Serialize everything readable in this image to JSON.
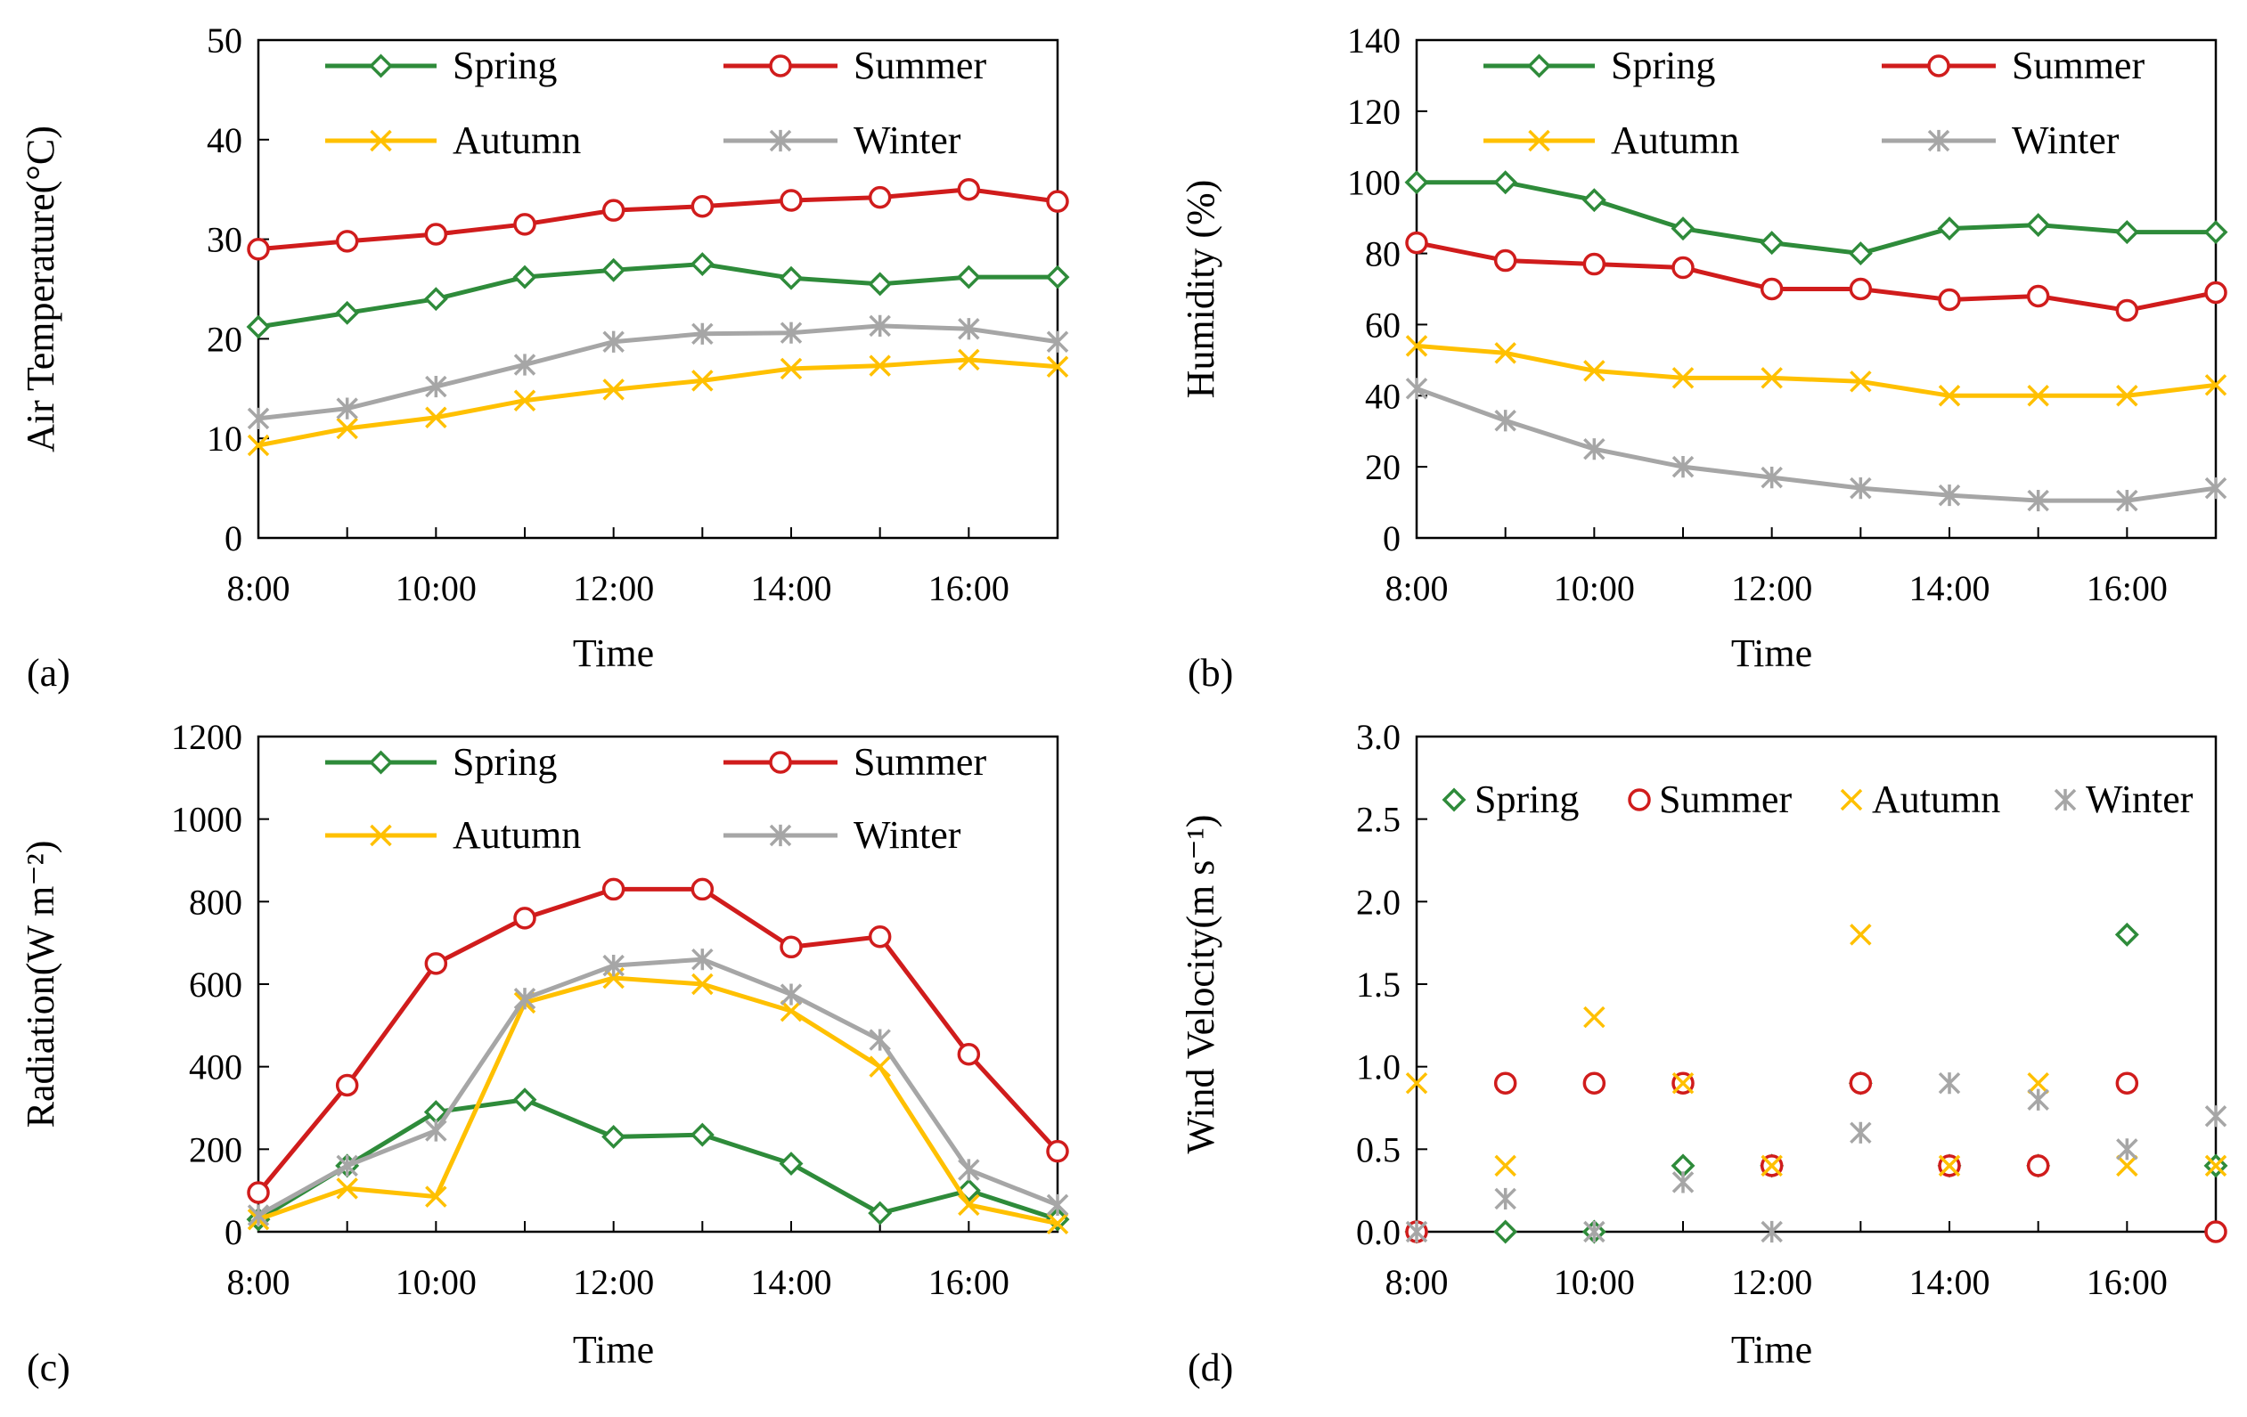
{
  "colors": {
    "spring": "#2e8b3a",
    "summer": "#d01c1c",
    "autumn": "#ffc000",
    "winter": "#a6a6a6",
    "axis": "#000000"
  },
  "chart_data": [
    {
      "panel_label": "(a)",
      "type": "line",
      "xlabel": "Time",
      "ylabel": "Air Temperature(°C)",
      "x": [
        8,
        9,
        10,
        11,
        12,
        13,
        14,
        15,
        16,
        17
      ],
      "x_tick_labels": [
        "8:00",
        "10:00",
        "12:00",
        "14:00",
        "16:00"
      ],
      "xlim": [
        8,
        17
      ],
      "ylim": [
        0,
        50
      ],
      "y_ticks": [
        0,
        10,
        20,
        30,
        40,
        50
      ],
      "y_tick_labels": [
        "0",
        "10",
        "20",
        "30",
        "40",
        "50"
      ],
      "legend_position": "top",
      "series": [
        {
          "name": "Spring",
          "key": "spring",
          "marker": "diamond",
          "values": [
            21.2,
            22.6,
            24,
            26.2,
            26.9,
            27.5,
            26.1,
            25.5,
            26.2,
            26.2
          ]
        },
        {
          "name": "Summer",
          "key": "summer",
          "marker": "circle",
          "values": [
            29,
            29.8,
            30.5,
            31.5,
            32.9,
            33.3,
            33.9,
            34.2,
            35,
            33.8
          ]
        },
        {
          "name": "Autumn",
          "key": "autumn",
          "marker": "x",
          "values": [
            9.3,
            11,
            12.1,
            13.8,
            14.9,
            15.8,
            17,
            17.3,
            17.9,
            17.2
          ]
        },
        {
          "name": "Winter",
          "key": "winter",
          "marker": "star",
          "values": [
            12,
            13,
            15.2,
            17.4,
            19.7,
            20.5,
            20.6,
            21.3,
            21,
            19.7
          ]
        }
      ]
    },
    {
      "panel_label": "(b)",
      "type": "line",
      "xlabel": "Time",
      "ylabel": "Humidity (%)",
      "x": [
        8,
        9,
        10,
        11,
        12,
        13,
        14,
        15,
        16,
        17
      ],
      "x_tick_labels": [
        "8:00",
        "10:00",
        "12:00",
        "14:00",
        "16:00"
      ],
      "xlim": [
        8,
        17
      ],
      "ylim": [
        0,
        140
      ],
      "y_ticks": [
        0,
        20,
        40,
        60,
        80,
        100,
        120,
        140
      ],
      "y_tick_labels": [
        "0",
        "20",
        "40",
        "60",
        "80",
        "100",
        "120",
        "140"
      ],
      "legend_position": "top",
      "series": [
        {
          "name": "Spring",
          "key": "spring",
          "marker": "diamond",
          "values": [
            100,
            100,
            95,
            87,
            83,
            80,
            87,
            88,
            86,
            86
          ]
        },
        {
          "name": "Summer",
          "key": "summer",
          "marker": "circle",
          "values": [
            83,
            78,
            77,
            76,
            70,
            70,
            67,
            68,
            64,
            69
          ]
        },
        {
          "name": "Autumn",
          "key": "autumn",
          "marker": "x",
          "values": [
            54,
            52,
            47,
            45,
            45,
            44,
            40,
            40,
            40,
            43
          ]
        },
        {
          "name": "Winter",
          "key": "winter",
          "marker": "star",
          "values": [
            42,
            33,
            25,
            20,
            17,
            14,
            12,
            10.5,
            10.5,
            14
          ]
        }
      ]
    },
    {
      "panel_label": "(c)",
      "type": "line",
      "xlabel": "Time",
      "ylabel": "Radiation(W m⁻²)",
      "x": [
        8,
        9,
        10,
        11,
        12,
        13,
        14,
        15,
        16,
        17
      ],
      "x_tick_labels": [
        "8:00",
        "10:00",
        "12:00",
        "14:00",
        "16:00"
      ],
      "xlim": [
        8,
        17
      ],
      "ylim": [
        0,
        1200
      ],
      "y_ticks": [
        0,
        200,
        400,
        600,
        800,
        1000,
        1200
      ],
      "y_tick_labels": [
        "0",
        "200",
        "400",
        "600",
        "800",
        "1000",
        "1200"
      ],
      "legend_position": "top",
      "series": [
        {
          "name": "Spring",
          "key": "spring",
          "marker": "diamond",
          "values": [
            30,
            160,
            290,
            320,
            230,
            235,
            165,
            45,
            100,
            30
          ]
        },
        {
          "name": "Summer",
          "key": "summer",
          "marker": "circle",
          "values": [
            95,
            355,
            650,
            760,
            830,
            830,
            690,
            715,
            430,
            195
          ]
        },
        {
          "name": "Autumn",
          "key": "autumn",
          "marker": "x",
          "values": [
            30,
            105,
            85,
            555,
            615,
            600,
            535,
            400,
            65,
            20
          ]
        },
        {
          "name": "Winter",
          "key": "winter",
          "marker": "star",
          "values": [
            40,
            160,
            245,
            565,
            645,
            660,
            575,
            465,
            150,
            65
          ]
        }
      ]
    },
    {
      "panel_label": "(d)",
      "type": "scatter",
      "xlabel": "Time",
      "ylabel": "Wind Velocity(m s⁻¹)",
      "x": [
        8,
        9,
        10,
        11,
        12,
        13,
        14,
        15,
        16,
        17
      ],
      "x_tick_labels": [
        "8:00",
        "10:00",
        "12:00",
        "14:00",
        "16:00"
      ],
      "xlim": [
        8,
        17
      ],
      "ylim": [
        0,
        3
      ],
      "y_ticks": [
        0,
        0.5,
        1,
        1.5,
        2,
        2.5,
        3
      ],
      "y_tick_labels": [
        "0.0",
        "0.5",
        "1.0",
        "1.5",
        "2.0",
        "2.5",
        "3.0"
      ],
      "legend_position": "top",
      "series": [
        {
          "name": "Spring",
          "key": "spring",
          "marker": "diamond",
          "values": [
            0,
            0,
            0,
            0.4,
            0.4,
            0.9,
            0.4,
            0.4,
            1.8,
            0.4
          ]
        },
        {
          "name": "Summer",
          "key": "summer",
          "marker": "circle",
          "values": [
            0,
            0.9,
            0.9,
            0.9,
            0.4,
            0.9,
            0.4,
            0.4,
            0.9,
            0
          ]
        },
        {
          "name": "Autumn",
          "key": "autumn",
          "marker": "x",
          "values": [
            0.9,
            0.4,
            1.3,
            0.9,
            0.4,
            1.8,
            0.4,
            0.9,
            0.4,
            0.4
          ]
        },
        {
          "name": "Winter",
          "key": "winter",
          "marker": "star",
          "values": [
            0,
            0.2,
            0,
            0.3,
            0,
            0.6,
            0.9,
            0.8,
            0.5,
            0.7
          ]
        }
      ]
    }
  ]
}
